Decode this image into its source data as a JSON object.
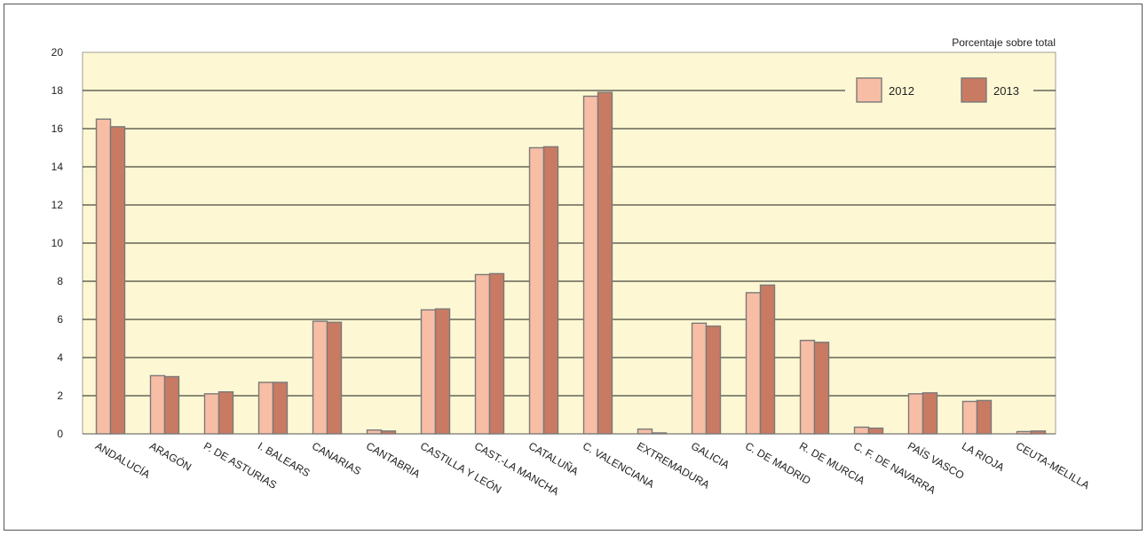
{
  "chart_data": {
    "type": "bar",
    "title": "",
    "unit_label": "Porcentaje sobre total",
    "xlabel": "",
    "ylabel": "",
    "ylim": [
      0,
      20
    ],
    "yticks": [
      "0",
      "2",
      "4",
      "6",
      "8",
      "10",
      "12",
      "14",
      "16",
      "18",
      "20"
    ],
    "grid": true,
    "legend_position": "top-right",
    "categories": [
      "ANDALUCÍA",
      "ARAGÓN",
      "P. DE ASTURIAS",
      "I. BALEARS",
      "CANARIAS",
      "CANTABRIA",
      "CASTILLA Y LEÓN",
      "CAST.-LA MANCHA",
      "CATALUÑA",
      "C. VALENCIANA",
      "EXTREMADURA",
      "GALICIA",
      "C. DE MADRID",
      "R. DE MURCIA",
      "C. F. DE NAVARRA",
      "PAÍS VASCO",
      "LA RIOJA",
      "CEUTA-MELILLA"
    ],
    "series": [
      {
        "name": "2012",
        "color": "#f7bda5",
        "values": [
          16.5,
          3.05,
          2.1,
          2.7,
          5.9,
          0.2,
          6.5,
          8.35,
          15.0,
          17.7,
          0.25,
          5.8,
          7.4,
          4.9,
          0.35,
          2.1,
          1.7,
          0.12
        ]
      },
      {
        "name": "2013",
        "color": "#c87b62",
        "values": [
          16.1,
          3.0,
          2.2,
          2.7,
          5.85,
          0.15,
          6.55,
          8.4,
          15.05,
          17.9,
          0.05,
          5.65,
          7.8,
          4.8,
          0.3,
          2.15,
          1.75,
          0.15
        ]
      }
    ],
    "colors": {
      "plot_background": "#fdf8d3",
      "gridline": "#1a1a1a",
      "bar_outline": "#7a7a7a"
    }
  }
}
